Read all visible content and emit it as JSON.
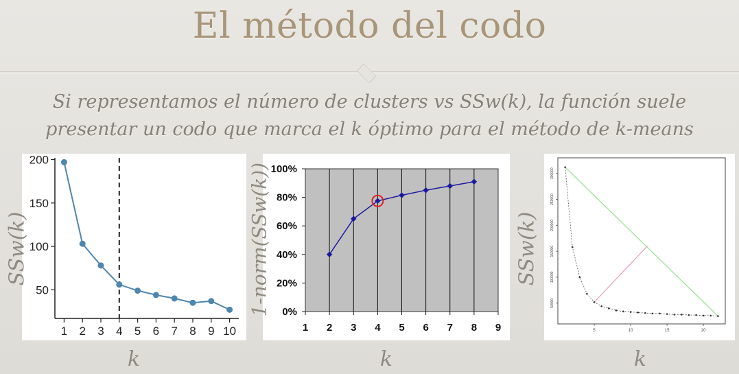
{
  "slide": {
    "title": "El método del codo",
    "subtitle_line1": "Si representamos el número de clusters vs SSw(k), la función suele",
    "subtitle_line2": "presentar un codo que marca el k óptimo para el método de k-means"
  },
  "axis_labels": {
    "left_y": "SSw(k)",
    "middle_y": "1-norm(SSw(k))",
    "right_y": "SSw(k)",
    "x_left": "k",
    "x_middle": "k",
    "x_right": "k"
  },
  "colors": {
    "title": "#a8967a",
    "left_line": "#4e86ae",
    "middle_line": "#1a1a9e",
    "middle_bg": "#c0c0c0",
    "middle_highlight": "#dd2222",
    "right_diagonal": "#a8e6a0",
    "right_connector": "#e7a0b0"
  },
  "chart_data": [
    {
      "type": "line",
      "x": [
        1,
        2,
        3,
        4,
        5,
        6,
        7,
        8,
        9,
        10
      ],
      "y": [
        197,
        103,
        78,
        56,
        49,
        44,
        40,
        35,
        37,
        27
      ],
      "xticks": [
        "1",
        "2",
        "3",
        "4",
        "5",
        "6",
        "7",
        "8",
        "9",
        "10"
      ],
      "yticks": [
        "50",
        "100",
        "150",
        "200"
      ],
      "xlim": [
        0.5,
        10.5
      ],
      "ylim": [
        17,
        202
      ],
      "elbow_line_x": 4,
      "xlabel": "k",
      "ylabel": "SSw(k)"
    },
    {
      "type": "line",
      "x": [
        2,
        3,
        4,
        5,
        6,
        7,
        8
      ],
      "y": [
        40,
        65,
        77.5,
        81.5,
        85,
        88,
        91
      ],
      "xticks": [
        "1",
        "2",
        "3",
        "4",
        "5",
        "6",
        "7",
        "8",
        "9"
      ],
      "yticks": [
        "0%",
        "20%",
        "40%",
        "60%",
        "80%",
        "100%"
      ],
      "xlim": [
        1,
        9
      ],
      "ylim": [
        0,
        100
      ],
      "highlight_x": 4,
      "grid": "vertical",
      "xlabel": "k",
      "ylabel": "1-norm(SSw(k))"
    },
    {
      "type": "line",
      "x": [
        1,
        2,
        3,
        4,
        5,
        6,
        7,
        8,
        9,
        10,
        11,
        12,
        13,
        14,
        15,
        16,
        17,
        18,
        19,
        20,
        21,
        22
      ],
      "y": [
        312,
        158,
        100,
        68,
        52,
        44,
        40,
        36,
        34,
        33,
        32,
        31,
        30,
        30,
        29,
        28,
        28,
        27,
        27,
        26,
        26,
        25
      ],
      "xticks": [
        "5",
        "10",
        "15",
        "20"
      ],
      "yticks": [
        "50000",
        "100000",
        "150000",
        "200000",
        "250000",
        "300000"
      ],
      "xlim": [
        0,
        23
      ],
      "ylim": [
        10,
        330
      ],
      "diagonal_from": [
        1,
        312
      ],
      "diagonal_to": [
        22,
        25
      ],
      "connector_from": [
        5,
        52
      ],
      "connector_to": [
        12.3,
        160
      ],
      "xlabel": "k",
      "ylabel": "SSw(k)"
    }
  ]
}
